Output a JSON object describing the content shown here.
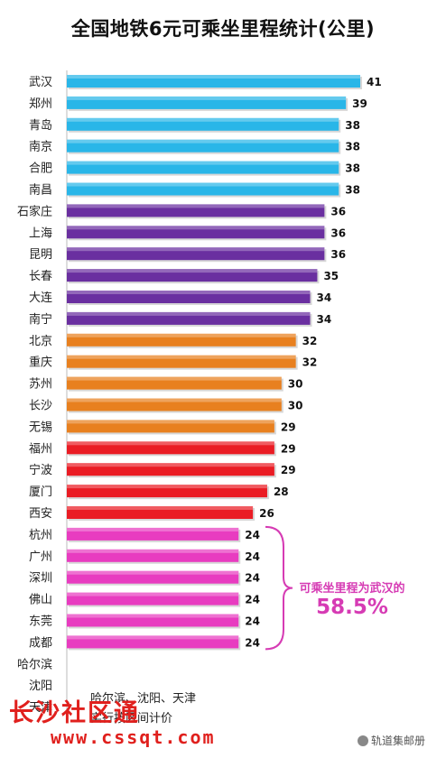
{
  "chart_data": {
    "type": "bar",
    "orientation": "horizontal",
    "title": "全国地铁6元可乘坐里程统计(公里)",
    "categories": [
      "武汉",
      "郑州",
      "青岛",
      "南京",
      "合肥",
      "南昌",
      "石家庄",
      "上海",
      "昆明",
      "长春",
      "大连",
      "南宁",
      "北京",
      "重庆",
      "苏州",
      "长沙",
      "无锡",
      "福州",
      "宁波",
      "厦门",
      "西安",
      "杭州",
      "广州",
      "深圳",
      "佛山",
      "东莞",
      "成都",
      "哈尔滨",
      "沈阳",
      "天津"
    ],
    "values": [
      41,
      39,
      38,
      38,
      38,
      38,
      36,
      36,
      36,
      35,
      34,
      34,
      32,
      32,
      30,
      30,
      29,
      29,
      29,
      28,
      26,
      24,
      24,
      24,
      24,
      24,
      24,
      null,
      null,
      null
    ],
    "bar_colors": [
      "#29b6e8",
      "#29b6e8",
      "#29b6e8",
      "#29b6e8",
      "#29b6e8",
      "#29b6e8",
      "#6a2fa0",
      "#6a2fa0",
      "#6a2fa0",
      "#6a2fa0",
      "#6a2fa0",
      "#6a2fa0",
      "#e8801f",
      "#e8801f",
      "#e8801f",
      "#e8801f",
      "#e8801f",
      "#ea1c24",
      "#ea1c24",
      "#ea1c24",
      "#ea1c24",
      "#e83cc0",
      "#e83cc0",
      "#e83cc0",
      "#e83cc0",
      "#e83cc0",
      "#e83cc0",
      null,
      null,
      null
    ],
    "xlim": [
      0,
      42
    ],
    "grid": false,
    "legend": "none"
  },
  "note_lines": [
    "哈尔滨、沈阳、天津",
    "实行按区间计价"
  ],
  "annotation": {
    "text": "可乘坐里程为武汉的",
    "percent": "58.5%",
    "color": "#d63bb4"
  },
  "watermarks": {
    "site_name": "长沙社区通",
    "url": "www.cssqt.com",
    "account": "轨道集邮册"
  }
}
